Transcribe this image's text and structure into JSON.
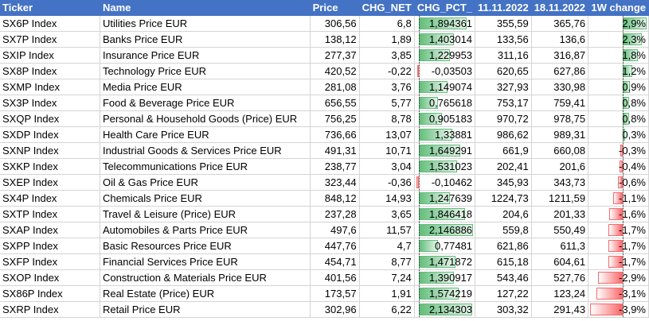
{
  "columns": {
    "ticker": "Ticker",
    "name": "Name",
    "price": "Price",
    "chg_net": "CHG_NET",
    "chg_pct": "CHG_PCT_",
    "d1": "11.11.2022",
    "d2": "18.11.2022",
    "change_1w": "1W change"
  },
  "colors": {
    "header_bg": "#4472c4",
    "positive_bar": "#63be7b",
    "negative_bar": "#f8696b"
  },
  "rows": [
    {
      "ticker": "SX6P Index",
      "name": "Utilities Price EUR",
      "price": "306,56",
      "chg_net": "6,8",
      "chg_pct": "1,894361",
      "d1": "355,59",
      "d2": "365,76",
      "change_1w": "2,9%",
      "pct_value": 1.894361,
      "w_value": 2.9
    },
    {
      "ticker": "SX7P Index",
      "name": "Banks Price EUR",
      "price": "138,12",
      "chg_net": "1,89",
      "chg_pct": "1,403014",
      "d1": "133,56",
      "d2": "136,6",
      "change_1w": "2,3%",
      "pct_value": 1.403014,
      "w_value": 2.3
    },
    {
      "ticker": "SXIP Index",
      "name": "Insurance Price EUR",
      "price": "277,37",
      "chg_net": "3,85",
      "chg_pct": "1,229953",
      "d1": "311,16",
      "d2": "316,87",
      "change_1w": "1,8%",
      "pct_value": 1.229953,
      "w_value": 1.8
    },
    {
      "ticker": "SX8P Index",
      "name": "Technology Price EUR",
      "price": "420,52",
      "chg_net": "-0,22",
      "chg_pct": "-0,03503",
      "d1": "620,65",
      "d2": "627,86",
      "change_1w": "1,2%",
      "pct_value": -0.03503,
      "w_value": 1.2
    },
    {
      "ticker": "SXMP Index",
      "name": "Media Price EUR",
      "price": "281,08",
      "chg_net": "3,76",
      "chg_pct": "1,149074",
      "d1": "327,93",
      "d2": "330,98",
      "change_1w": "0,9%",
      "pct_value": 1.149074,
      "w_value": 0.9
    },
    {
      "ticker": "SX3P Index",
      "name": "Food & Beverage Price EUR",
      "price": "656,55",
      "chg_net": "5,77",
      "chg_pct": "0,765618",
      "d1": "753,17",
      "d2": "759,41",
      "change_1w": "0,8%",
      "pct_value": 0.765618,
      "w_value": 0.8
    },
    {
      "ticker": "SXQP Index",
      "name": "Personal & Household Goods (Price) EUR",
      "price": "756,25",
      "chg_net": "8,78",
      "chg_pct": "0,905183",
      "d1": "970,72",
      "d2": "978,75",
      "change_1w": "0,8%",
      "pct_value": 0.905183,
      "w_value": 0.8
    },
    {
      "ticker": "SXDP Index",
      "name": "Health Care Price EUR",
      "price": "736,66",
      "chg_net": "13,07",
      "chg_pct": "1,33881",
      "d1": "986,62",
      "d2": "989,31",
      "change_1w": "0,3%",
      "pct_value": 1.33881,
      "w_value": 0.3
    },
    {
      "ticker": "SXNP Index",
      "name": "Industrial Goods & Services Price EUR",
      "price": "491,31",
      "chg_net": "10,71",
      "chg_pct": "1,649291",
      "d1": "661,9",
      "d2": "660,08",
      "change_1w": "-0,3%",
      "pct_value": 1.649291,
      "w_value": -0.3
    },
    {
      "ticker": "SXKP Index",
      "name": "Telecommunications Price EUR",
      "price": "238,77",
      "chg_net": "3,04",
      "chg_pct": "1,531023",
      "d1": "202,41",
      "d2": "201,6",
      "change_1w": "-0,4%",
      "pct_value": 1.531023,
      "w_value": -0.4
    },
    {
      "ticker": "SXEP Index",
      "name": "Oil & Gas Price EUR",
      "price": "323,44",
      "chg_net": "-0,36",
      "chg_pct": "-0,10462",
      "d1": "345,93",
      "d2": "343,73",
      "change_1w": "-0,6%",
      "pct_value": -0.10462,
      "w_value": -0.6
    },
    {
      "ticker": "SX4P Index",
      "name": "Chemicals Price EUR",
      "price": "848,12",
      "chg_net": "14,93",
      "chg_pct": "1,247639",
      "d1": "1224,73",
      "d2": "1211,59",
      "change_1w": "-1,1%",
      "pct_value": 1.247639,
      "w_value": -1.1
    },
    {
      "ticker": "SXTP Index",
      "name": "Travel & Leisure (Price) EUR",
      "price": "237,28",
      "chg_net": "3,65",
      "chg_pct": "1,846418",
      "d1": "204,6",
      "d2": "201,33",
      "change_1w": "-1,6%",
      "pct_value": 1.846418,
      "w_value": -1.6
    },
    {
      "ticker": "SXAP Index",
      "name": "Automobiles & Parts Price EUR",
      "price": "497,6",
      "chg_net": "11,57",
      "chg_pct": "2,146886",
      "d1": "559,8",
      "d2": "550,49",
      "change_1w": "-1,7%",
      "pct_value": 2.146886,
      "w_value": -1.7
    },
    {
      "ticker": "SXPP Index",
      "name": "Basic Resources Price EUR",
      "price": "447,76",
      "chg_net": "4,7",
      "chg_pct": "0,77481",
      "d1": "621,86",
      "d2": "611,3",
      "change_1w": "-1,7%",
      "pct_value": 0.77481,
      "w_value": -1.7
    },
    {
      "ticker": "SXFP Index",
      "name": "Financial Services Price EUR",
      "price": "454,71",
      "chg_net": "8,77",
      "chg_pct": "1,471872",
      "d1": "615,18",
      "d2": "604,61",
      "change_1w": "-1,7%",
      "pct_value": 1.471872,
      "w_value": -1.7
    },
    {
      "ticker": "SXOP Index",
      "name": "Construction & Materials Price EUR",
      "price": "401,56",
      "chg_net": "7,24",
      "chg_pct": "1,390917",
      "d1": "543,46",
      "d2": "527,76",
      "change_1w": "-2,9%",
      "pct_value": 1.390917,
      "w_value": -2.9
    },
    {
      "ticker": "SX86P Index",
      "name": "Real Estate (Price) EUR",
      "price": "173,57",
      "chg_net": "1,91",
      "chg_pct": "1,574219",
      "d1": "127,22",
      "d2": "123,24",
      "change_1w": "-3,1%",
      "pct_value": 1.574219,
      "w_value": -3.1
    },
    {
      "ticker": "SXRP Index",
      "name": "Retail Price EUR",
      "price": "302,96",
      "chg_net": "6,22",
      "chg_pct": "2,134303",
      "d1": "303,32",
      "d2": "291,43",
      "change_1w": "-3,9%",
      "pct_value": 2.134303,
      "w_value": -3.9
    }
  ]
}
